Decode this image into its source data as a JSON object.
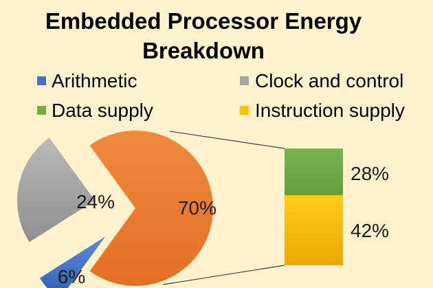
{
  "chart_data": {
    "type": "bar-of-pie",
    "title": "Embedded Processor Energy Breakdown",
    "title_lines": [
      "Embedded Processor Energy",
      "Breakdown"
    ],
    "legend": [
      {
        "label": "Arithmetic",
        "color": "#4472c4"
      },
      {
        "label": "Clock and control",
        "color": "#a5a5a5"
      },
      {
        "label": "Data supply",
        "color": "#70ad47"
      },
      {
        "label": "Instruction supply",
        "color": "#ffc000"
      }
    ],
    "pie": [
      {
        "name": "Clock and control",
        "value": 24,
        "label": "24%",
        "color": "#a5a5a5"
      },
      {
        "name": "Arithmetic",
        "value": 6,
        "label": "6%",
        "color": "#4472c4"
      },
      {
        "name": "Data supply + Instruction supply",
        "value": 70,
        "label": "70%",
        "color": "#ed7d31"
      }
    ],
    "bar": [
      {
        "name": "Data supply",
        "value": 28,
        "label": "28%",
        "color": "#70ad47"
      },
      {
        "name": "Instruction supply",
        "value": 42,
        "label": "42%",
        "color": "#ffc000"
      }
    ]
  }
}
